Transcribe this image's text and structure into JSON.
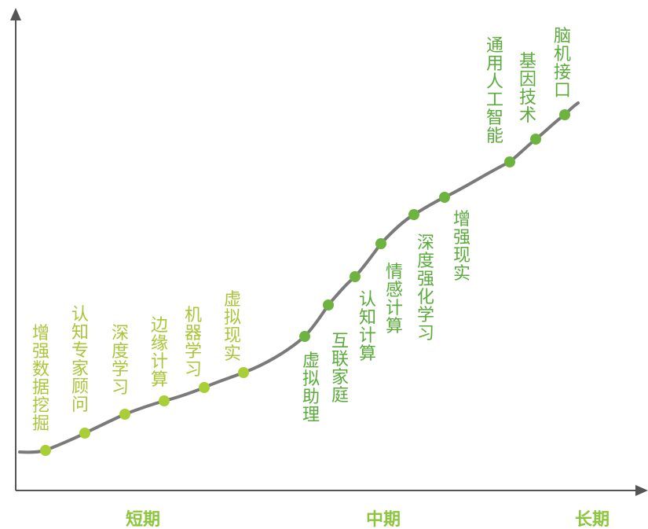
{
  "colors": {
    "curve": "#7a7a7a",
    "axis": "#555555",
    "dot_light": "#a9cf38",
    "dot_dark": "#6db33f",
    "label_light": "#a8c63a",
    "label_dark": "#5aab3c",
    "period": "#8cc63f"
  },
  "periods": {
    "short": "短期",
    "mid": "中期",
    "long": "长期"
  },
  "milestones": [
    {
      "label": "增强数据挖掘",
      "tone": "light"
    },
    {
      "label": "认知专家顾问",
      "tone": "light"
    },
    {
      "label": "深度学习",
      "tone": "light"
    },
    {
      "label": "边缘计算",
      "tone": "light"
    },
    {
      "label": "机器学习",
      "tone": "light"
    },
    {
      "label": "虚拟现实",
      "tone": "light"
    },
    {
      "label": "虚拟助理",
      "tone": "dark"
    },
    {
      "label": "互联家庭",
      "tone": "dark"
    },
    {
      "label": "认知计算",
      "tone": "dark"
    },
    {
      "label": "情感计算",
      "tone": "dark"
    },
    {
      "label": "深度强化学习",
      "tone": "dark"
    },
    {
      "label": "增强现实",
      "tone": "dark"
    },
    {
      "label": "通用人工智能",
      "tone": "dark"
    },
    {
      "label": "基因技术",
      "tone": "dark"
    },
    {
      "label": "脑机接口",
      "tone": "dark"
    }
  ]
}
